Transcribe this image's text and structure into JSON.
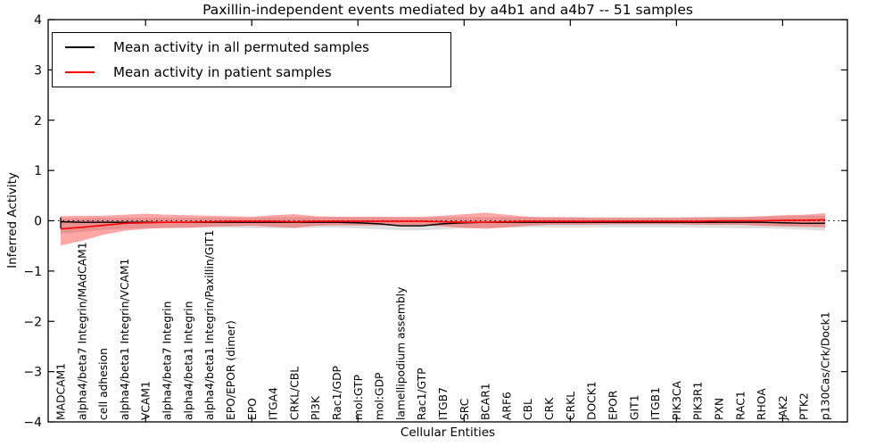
{
  "title": "Paxillin-independent events mediated by a4b1 and a4b7 -- 51 samples",
  "legend": {
    "entries": [
      {
        "label": "Mean activity in all permuted samples",
        "color": "#000000"
      },
      {
        "label": "Mean activity in patient samples",
        "color": "#ff0000"
      }
    ]
  },
  "axes": {
    "xlabel": "Cellular Entities",
    "ylabel": "Inferred Activity",
    "ylim": [
      -4,
      4
    ],
    "yticks": [
      4,
      3,
      2,
      1,
      0,
      -1,
      -2,
      -3,
      -4
    ],
    "ytick_labels": [
      "4",
      "3",
      "2",
      "1",
      "0",
      "−1",
      "−2",
      "−3",
      "−4"
    ],
    "grid": false
  },
  "chart_data": {
    "type": "line",
    "title": "Paxillin-independent events mediated by a4b1 and a4b7 -- 51 samples",
    "xlabel": "Cellular Entities",
    "ylabel": "Inferred Activity",
    "ylim": [
      -4,
      4
    ],
    "zero_line_style": "black dotted",
    "legend_position": "upper left",
    "categories": [
      "MADCAM1",
      "alpha4/beta7 Integrin/MAdCAM1",
      "cell adhesion",
      "alpha4/beta1 Integrin/VCAM1",
      "VCAM1",
      "alpha4/beta7 Integrin",
      "alpha4/beta1 Integrin",
      "alpha4/beta1 Integrin/Paxillin/GIT1",
      "EPO/EPOR (dimer)",
      "EPO",
      "ITGA4",
      "CRKL/CBL",
      "PI3K",
      "Rac1/GDP",
      "mol:GTP",
      "mol:GDP",
      "lamellipodium assembly",
      "Rac1/GTP",
      "ITGB7",
      "SRC",
      "BCAR1",
      "ARF6",
      "CBL",
      "CRK",
      "CRKL",
      "DOCK1",
      "EPOR",
      "GIT1",
      "ITGB1",
      "PIK3CA",
      "PIK3R1",
      "PXN",
      "RAC1",
      "RHOA",
      "JAK2",
      "PTK2",
      "p130Cas/Crk/Dock1"
    ],
    "series": [
      {
        "name": "Mean activity in all permuted samples",
        "color": "#000000",
        "band_color": "rgba(0,0,0,0.13)",
        "values": [
          -0.02,
          -0.03,
          -0.03,
          -0.03,
          -0.03,
          -0.03,
          -0.03,
          -0.03,
          -0.03,
          -0.03,
          -0.03,
          -0.03,
          -0.03,
          -0.03,
          -0.04,
          -0.06,
          -0.1,
          -0.1,
          -0.06,
          -0.04,
          -0.03,
          -0.03,
          -0.03,
          -0.03,
          -0.03,
          -0.03,
          -0.03,
          -0.03,
          -0.03,
          -0.03,
          -0.03,
          -0.03,
          -0.03,
          -0.03,
          -0.04,
          -0.05,
          -0.05
        ],
        "band_upper": [
          0.05,
          0.05,
          0.06,
          0.06,
          0.06,
          0.06,
          0.06,
          0.06,
          0.06,
          0.06,
          0.07,
          0.07,
          0.07,
          0.07,
          0.07,
          0.07,
          0.06,
          0.06,
          0.07,
          0.07,
          0.07,
          0.07,
          0.07,
          0.07,
          0.07,
          0.07,
          0.07,
          0.07,
          0.07,
          0.07,
          0.07,
          0.08,
          0.08,
          0.08,
          0.09,
          0.1,
          0.1
        ],
        "band_lower": [
          -0.25,
          -0.22,
          -0.18,
          -0.16,
          -0.15,
          -0.15,
          -0.14,
          -0.14,
          -0.14,
          -0.15,
          -0.15,
          -0.15,
          -0.14,
          -0.14,
          -0.15,
          -0.17,
          -0.19,
          -0.19,
          -0.17,
          -0.15,
          -0.14,
          -0.14,
          -0.13,
          -0.13,
          -0.13,
          -0.13,
          -0.13,
          -0.13,
          -0.13,
          -0.13,
          -0.14,
          -0.14,
          -0.15,
          -0.15,
          -0.16,
          -0.18,
          -0.2
        ]
      },
      {
        "name": "Mean activity in patient samples",
        "color": "#ff0000",
        "band_color": "rgba(255,0,0,0.35)",
        "values": [
          -0.16,
          -0.13,
          -0.09,
          -0.05,
          -0.04,
          -0.03,
          -0.03,
          -0.02,
          -0.01,
          -0.01,
          -0.01,
          -0.02,
          -0.01,
          -0.01,
          -0.01,
          -0.01,
          -0.01,
          -0.01,
          -0.02,
          -0.03,
          -0.03,
          -0.02,
          -0.01,
          -0.01,
          -0.01,
          -0.01,
          -0.01,
          -0.01,
          -0.01,
          -0.01,
          -0.01,
          0.0,
          0.0,
          0.0,
          0.01,
          0.01,
          0.02
        ],
        "band_upper": [
          0.09,
          0.1,
          0.1,
          0.12,
          0.14,
          0.12,
          0.11,
          0.1,
          0.09,
          0.08,
          0.11,
          0.13,
          0.09,
          0.08,
          0.08,
          0.08,
          0.08,
          0.08,
          0.1,
          0.13,
          0.16,
          0.12,
          0.08,
          0.07,
          0.07,
          0.06,
          0.06,
          0.06,
          0.06,
          0.06,
          0.07,
          0.07,
          0.07,
          0.09,
          0.11,
          0.12,
          0.15
        ],
        "band_lower": [
          -0.49,
          -0.4,
          -0.28,
          -0.2,
          -0.16,
          -0.14,
          -0.14,
          -0.12,
          -0.11,
          -0.1,
          -0.12,
          -0.14,
          -0.1,
          -0.09,
          -0.09,
          -0.09,
          -0.09,
          -0.09,
          -0.11,
          -0.14,
          -0.16,
          -0.13,
          -0.1,
          -0.08,
          -0.08,
          -0.08,
          -0.07,
          -0.07,
          -0.07,
          -0.07,
          -0.08,
          -0.08,
          -0.08,
          -0.1,
          -0.11,
          -0.12,
          -0.13
        ]
      }
    ],
    "cap_marker": {
      "category_index": 0,
      "upper": 0.07,
      "lower": -0.15
    }
  }
}
